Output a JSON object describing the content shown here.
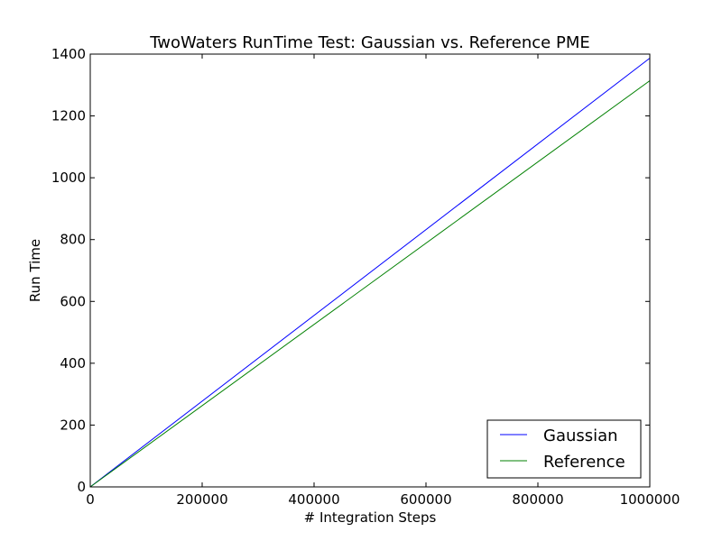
{
  "chart_data": {
    "type": "line",
    "title": "TwoWaters RunTime Test: Gaussian vs. Reference PME",
    "xlabel": "# Integration Steps",
    "ylabel": "Run Time",
    "xlim": [
      0,
      1000000
    ],
    "ylim": [
      0,
      1400
    ],
    "x_ticks": [
      0,
      200000,
      400000,
      600000,
      800000,
      1000000
    ],
    "x_tick_labels": [
      "0",
      "200000",
      "400000",
      "600000",
      "800000",
      "1000000"
    ],
    "y_ticks": [
      0,
      200,
      400,
      600,
      800,
      1000,
      1200,
      1400
    ],
    "y_tick_labels": [
      "0",
      "200",
      "400",
      "600",
      "800",
      "1000",
      "1200",
      "1400"
    ],
    "grid": false,
    "legend_position": "lower-right",
    "series": [
      {
        "name": "Gaussian",
        "color": "#0000ff",
        "x": [
          0,
          1000000
        ],
        "y": [
          0,
          1387
        ]
      },
      {
        "name": "Reference",
        "color": "#008000",
        "x": [
          0,
          1000000
        ],
        "y": [
          0,
          1314
        ]
      }
    ]
  }
}
